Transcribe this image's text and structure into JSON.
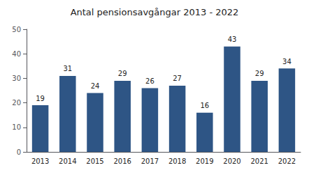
{
  "chart_data": {
    "type": "bar",
    "title": "Antal pensionsavgångar 2013 - 2022",
    "categories": [
      "2013",
      "2014",
      "2015",
      "2016",
      "2017",
      "2018",
      "2019",
      "2020",
      "2021",
      "2022"
    ],
    "values": [
      19,
      31,
      24,
      29,
      26,
      27,
      16,
      43,
      29,
      34
    ],
    "color": "#2E5585",
    "ylim": [
      0,
      50
    ],
    "yticks": [
      0,
      10,
      20,
      30,
      40,
      50
    ],
    "grid": false,
    "data_labels": true
  }
}
